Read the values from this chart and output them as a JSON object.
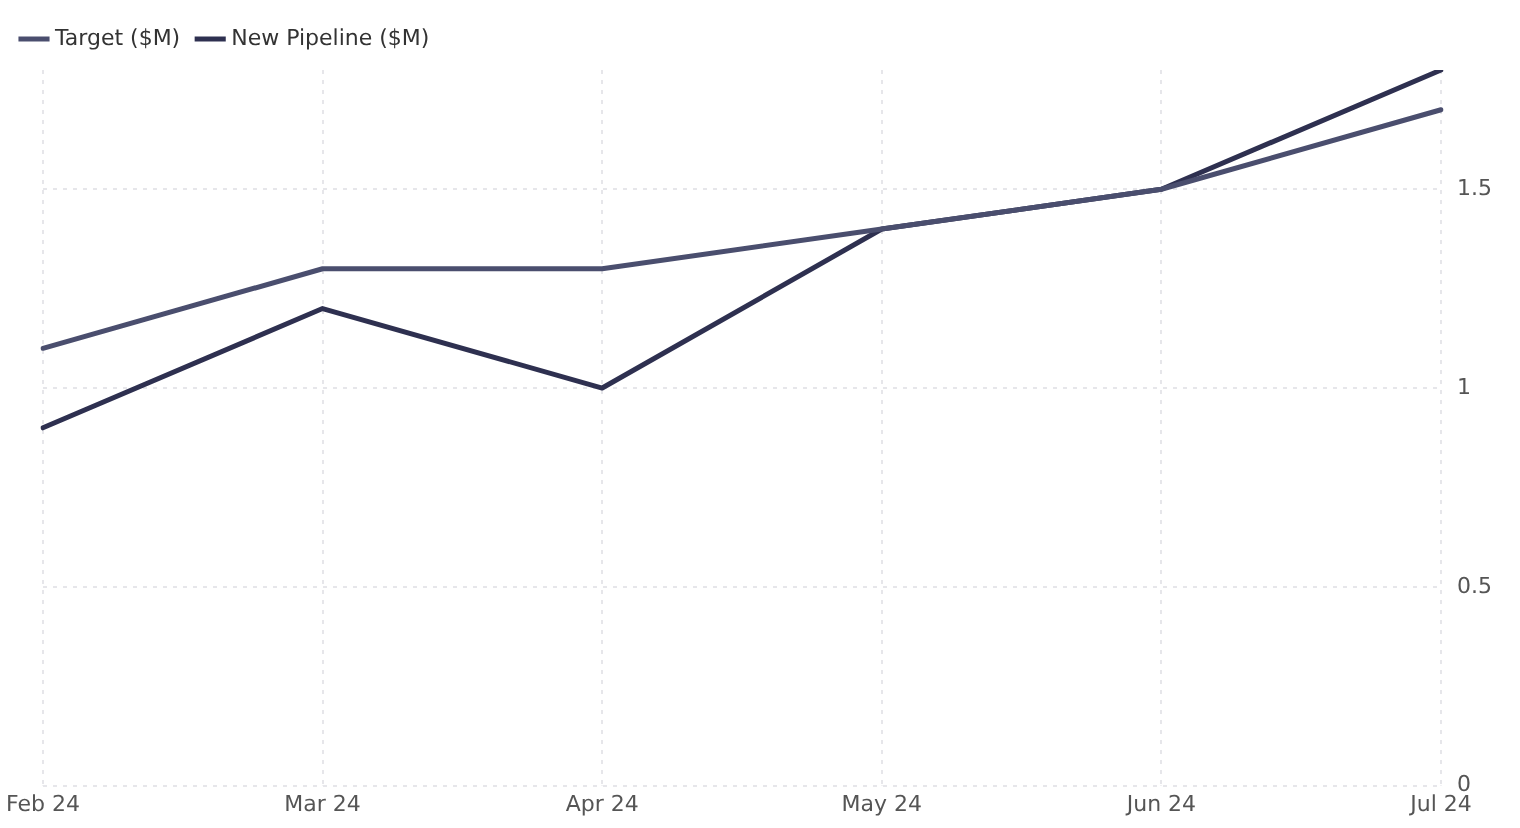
{
  "chart_data": {
    "type": "line",
    "categories": [
      "Feb 24",
      "Mar 24",
      "Apr 24",
      "May 24",
      "Jun 24",
      "Jul 24"
    ],
    "series": [
      {
        "name": "Target ($M)",
        "color": "#4a4e6e",
        "values": [
          1.1,
          1.3,
          1.3,
          1.4,
          1.5,
          1.7
        ]
      },
      {
        "name": "New Pipeline ($M)",
        "color": "#2e3050",
        "values": [
          0.9,
          1.2,
          1.0,
          1.4,
          1.5,
          1.8
        ]
      }
    ],
    "ylim": [
      0,
      1.8
    ],
    "yticks": [
      0,
      0.5,
      1,
      1.5
    ],
    "grid": true,
    "legend": "top left",
    "marker": "none",
    "line_style": "solid"
  }
}
